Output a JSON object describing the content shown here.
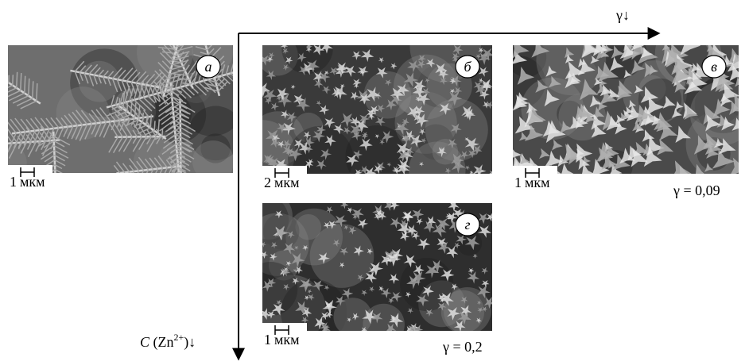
{
  "x_axis_label": "γ↓",
  "y_axis_label": {
    "symbol": "C",
    "ion": "(Zn",
    "charge": "2+",
    "close": ")↓"
  },
  "panels": [
    {
      "label": "а",
      "scale_value": "1",
      "scale_unit": "мкм"
    },
    {
      "label": "б",
      "scale_value": "2",
      "scale_unit": "мкм"
    },
    {
      "label": "в",
      "scale_value": "1",
      "scale_unit": "мкм",
      "caption": "γ = 0,09"
    },
    {
      "label": "г",
      "scale_value": "1",
      "scale_unit": "мкм",
      "caption": "γ = 0,2"
    }
  ]
}
